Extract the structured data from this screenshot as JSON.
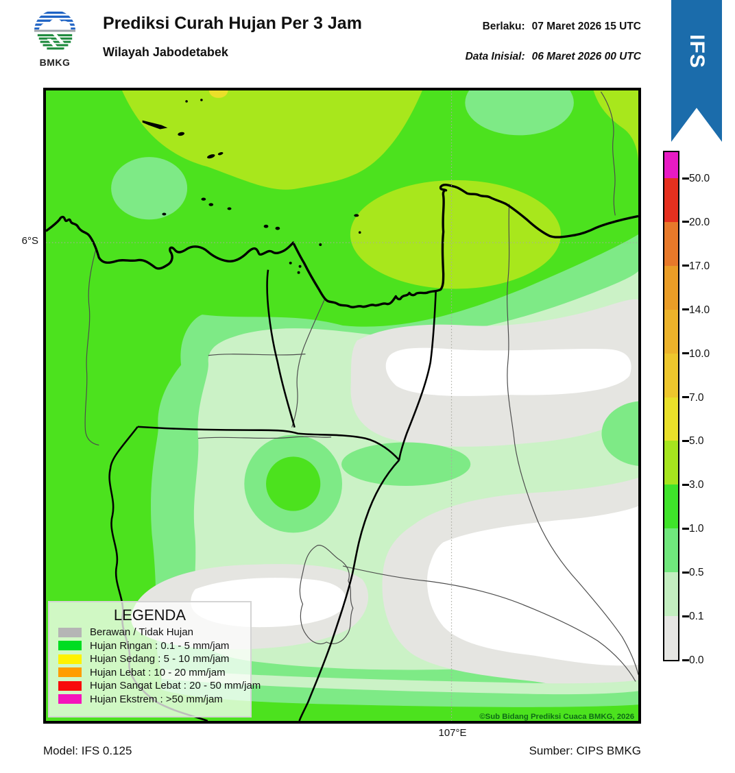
{
  "header": {
    "logo_text": "BMKG",
    "title": "Prediksi Curah Hujan Per 3 Jam",
    "subtitle": "Wilayah Jabodetabek",
    "valid": {
      "label": "Berlaku:",
      "value": "07 Maret 2026 15 UTC"
    },
    "initial": {
      "label": "Data Inisial:",
      "value": "06 Maret 2026 00 UTC"
    }
  },
  "ribbon": {
    "label": "IFS",
    "color": "#1b6cab"
  },
  "map": {
    "lat_tick": "6°S",
    "lon_tick": "107°E",
    "copyright": "©Sub Bidang Prediksi Cuaca BMKG, 2026",
    "palette": {
      "rain_1_3": "#4ce21e",
      "rain_05_1": "#7eea86",
      "rain_01_05": "#cbf2c6",
      "cloudy_gray": "#e5e5e1",
      "no_rain_white": "#ffffff",
      "rain_3_5": "#a8e71c",
      "rain_5_7": "#eadf2a"
    }
  },
  "colorbar": {
    "tick_labels": [
      "50.0",
      "20.0",
      "17.0",
      "14.0",
      "10.0",
      "7.0",
      "5.0",
      "3.0",
      "1.0",
      "0.5",
      "0.1",
      "0.0"
    ],
    "segment_colors_top_to_bottom": [
      "#e71bc3",
      "#e5301f",
      "#e7792a",
      "#ea9d27",
      "#ecb32b",
      "#eec72d",
      "#e9e02a",
      "#a6e51e",
      "#3fe32a",
      "#70e77c",
      "#c3eec0",
      "#e6e6e3"
    ]
  },
  "legend": {
    "title": "LEGENDA",
    "items": [
      {
        "swatch": "#b5b5b5",
        "label": "Berawan / Tidak Hujan"
      },
      {
        "swatch": "#00dd22",
        "label": "Hujan Ringan : 0.1 - 5 mm/jam"
      },
      {
        "swatch": "#fff200",
        "label": "Hujan Sedang : 5 - 10 mm/jam"
      },
      {
        "swatch": "#ff9d00",
        "label": "Hujan Lebat : 10 - 20 mm/jam"
      },
      {
        "swatch": "#f80b0b",
        "label": "Hujan Sangat Lebat : 20 - 50 mm/jam"
      },
      {
        "swatch": "#f513bb",
        "label": "Hujan Ekstrem : >50 mm/jam"
      }
    ]
  },
  "footer": {
    "model": "Model: IFS 0.125",
    "source": "Sumber: CIPS BMKG"
  }
}
